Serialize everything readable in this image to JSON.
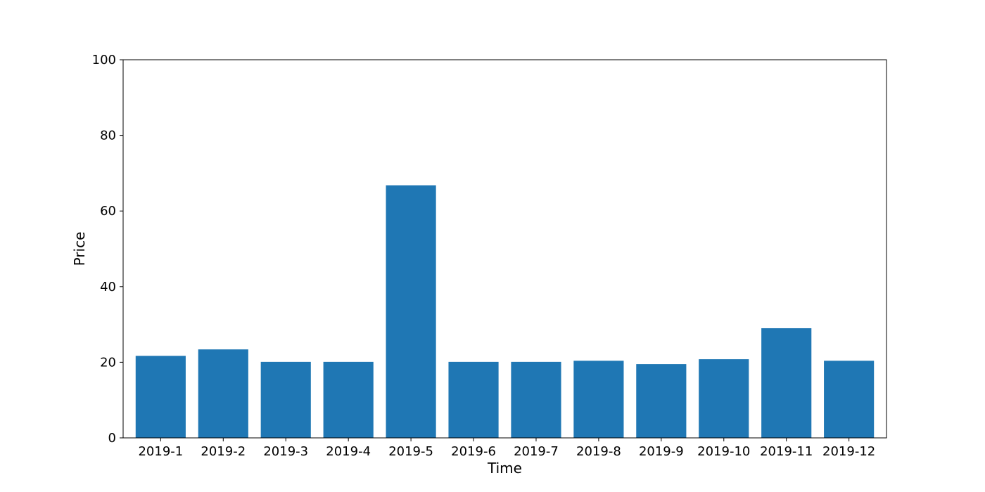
{
  "chart_data": {
    "type": "bar",
    "title": "",
    "xlabel": "Time",
    "ylabel": "Price",
    "categories": [
      "2019-1",
      "2019-2",
      "2019-3",
      "2019-4",
      "2019-5",
      "2019-6",
      "2019-7",
      "2019-8",
      "2019-9",
      "2019-10",
      "2019-11",
      "2019-12"
    ],
    "values": [
      21.7,
      23.4,
      20.1,
      20.1,
      66.8,
      20.1,
      20.1,
      20.4,
      19.5,
      20.8,
      29.0,
      20.4
    ],
    "ylim": [
      0,
      100
    ],
    "yticks": [
      0,
      20,
      40,
      60,
      80,
      100
    ],
    "grid": false,
    "legend": "none",
    "colors": {
      "bar": "#1f77b4",
      "axis": "#000000",
      "background": "#ffffff"
    }
  }
}
